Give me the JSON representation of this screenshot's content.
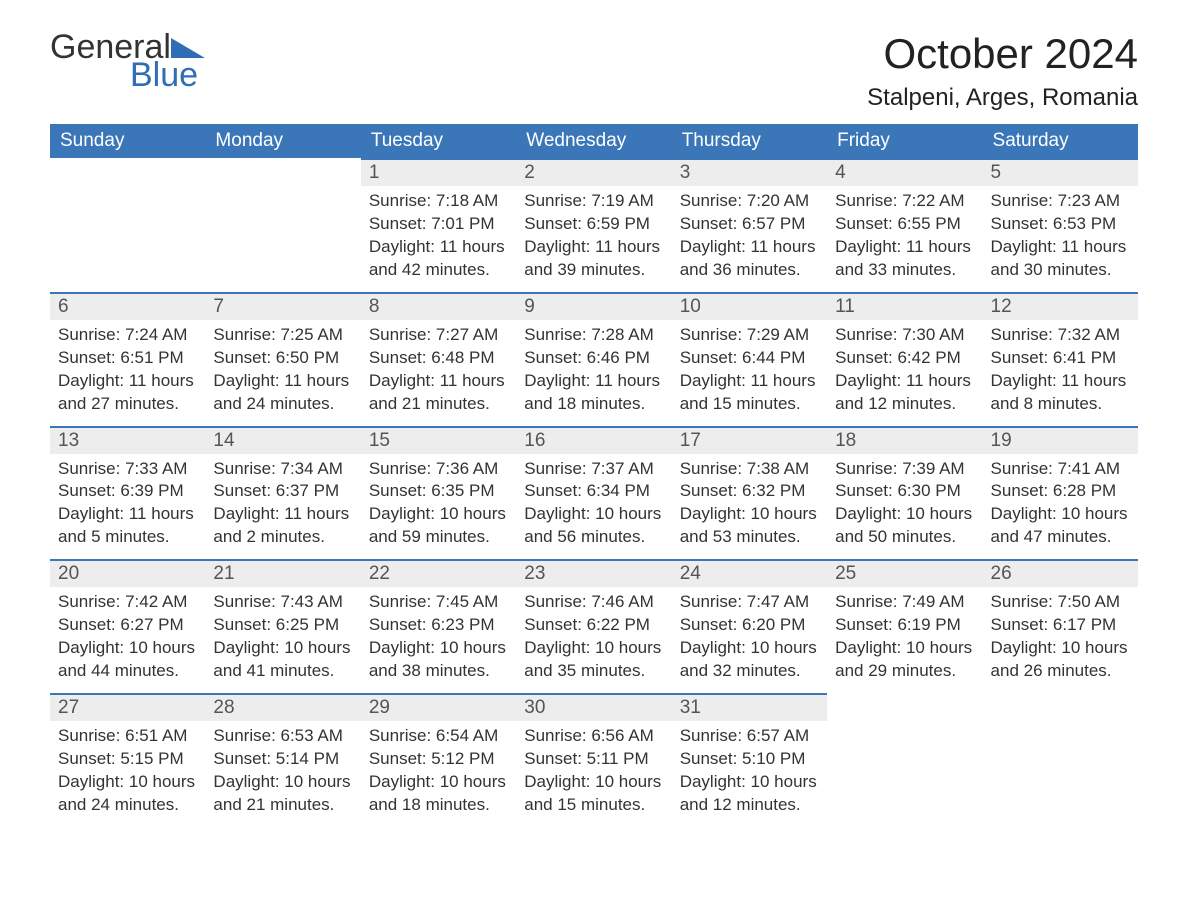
{
  "logo": {
    "line1": "General",
    "line2": "Blue",
    "accent_color": "#2f6eb5"
  },
  "header": {
    "title": "October 2024",
    "location": "Stalpeni, Arges, Romania"
  },
  "weekdays": [
    "Sunday",
    "Monday",
    "Tuesday",
    "Wednesday",
    "Thursday",
    "Friday",
    "Saturday"
  ],
  "colors": {
    "header_bg": "#3a76b8",
    "header_text": "#ffffff",
    "daynum_bg": "#ededed",
    "daynum_border": "#3a76b8",
    "text": "#333333"
  },
  "weeks": [
    [
      null,
      null,
      {
        "n": "1",
        "sunrise": "7:18 AM",
        "sunset": "7:01 PM",
        "daylight": "11 hours and 42 minutes."
      },
      {
        "n": "2",
        "sunrise": "7:19 AM",
        "sunset": "6:59 PM",
        "daylight": "11 hours and 39 minutes."
      },
      {
        "n": "3",
        "sunrise": "7:20 AM",
        "sunset": "6:57 PM",
        "daylight": "11 hours and 36 minutes."
      },
      {
        "n": "4",
        "sunrise": "7:22 AM",
        "sunset": "6:55 PM",
        "daylight": "11 hours and 33 minutes."
      },
      {
        "n": "5",
        "sunrise": "7:23 AM",
        "sunset": "6:53 PM",
        "daylight": "11 hours and 30 minutes."
      }
    ],
    [
      {
        "n": "6",
        "sunrise": "7:24 AM",
        "sunset": "6:51 PM",
        "daylight": "11 hours and 27 minutes."
      },
      {
        "n": "7",
        "sunrise": "7:25 AM",
        "sunset": "6:50 PM",
        "daylight": "11 hours and 24 minutes."
      },
      {
        "n": "8",
        "sunrise": "7:27 AM",
        "sunset": "6:48 PM",
        "daylight": "11 hours and 21 minutes."
      },
      {
        "n": "9",
        "sunrise": "7:28 AM",
        "sunset": "6:46 PM",
        "daylight": "11 hours and 18 minutes."
      },
      {
        "n": "10",
        "sunrise": "7:29 AM",
        "sunset": "6:44 PM",
        "daylight": "11 hours and 15 minutes."
      },
      {
        "n": "11",
        "sunrise": "7:30 AM",
        "sunset": "6:42 PM",
        "daylight": "11 hours and 12 minutes."
      },
      {
        "n": "12",
        "sunrise": "7:32 AM",
        "sunset": "6:41 PM",
        "daylight": "11 hours and 8 minutes."
      }
    ],
    [
      {
        "n": "13",
        "sunrise": "7:33 AM",
        "sunset": "6:39 PM",
        "daylight": "11 hours and 5 minutes."
      },
      {
        "n": "14",
        "sunrise": "7:34 AM",
        "sunset": "6:37 PM",
        "daylight": "11 hours and 2 minutes."
      },
      {
        "n": "15",
        "sunrise": "7:36 AM",
        "sunset": "6:35 PM",
        "daylight": "10 hours and 59 minutes."
      },
      {
        "n": "16",
        "sunrise": "7:37 AM",
        "sunset": "6:34 PM",
        "daylight": "10 hours and 56 minutes."
      },
      {
        "n": "17",
        "sunrise": "7:38 AM",
        "sunset": "6:32 PM",
        "daylight": "10 hours and 53 minutes."
      },
      {
        "n": "18",
        "sunrise": "7:39 AM",
        "sunset": "6:30 PM",
        "daylight": "10 hours and 50 minutes."
      },
      {
        "n": "19",
        "sunrise": "7:41 AM",
        "sunset": "6:28 PM",
        "daylight": "10 hours and 47 minutes."
      }
    ],
    [
      {
        "n": "20",
        "sunrise": "7:42 AM",
        "sunset": "6:27 PM",
        "daylight": "10 hours and 44 minutes."
      },
      {
        "n": "21",
        "sunrise": "7:43 AM",
        "sunset": "6:25 PM",
        "daylight": "10 hours and 41 minutes."
      },
      {
        "n": "22",
        "sunrise": "7:45 AM",
        "sunset": "6:23 PM",
        "daylight": "10 hours and 38 minutes."
      },
      {
        "n": "23",
        "sunrise": "7:46 AM",
        "sunset": "6:22 PM",
        "daylight": "10 hours and 35 minutes."
      },
      {
        "n": "24",
        "sunrise": "7:47 AM",
        "sunset": "6:20 PM",
        "daylight": "10 hours and 32 minutes."
      },
      {
        "n": "25",
        "sunrise": "7:49 AM",
        "sunset": "6:19 PM",
        "daylight": "10 hours and 29 minutes."
      },
      {
        "n": "26",
        "sunrise": "7:50 AM",
        "sunset": "6:17 PM",
        "daylight": "10 hours and 26 minutes."
      }
    ],
    [
      {
        "n": "27",
        "sunrise": "6:51 AM",
        "sunset": "5:15 PM",
        "daylight": "10 hours and 24 minutes."
      },
      {
        "n": "28",
        "sunrise": "6:53 AM",
        "sunset": "5:14 PM",
        "daylight": "10 hours and 21 minutes."
      },
      {
        "n": "29",
        "sunrise": "6:54 AM",
        "sunset": "5:12 PM",
        "daylight": "10 hours and 18 minutes."
      },
      {
        "n": "30",
        "sunrise": "6:56 AM",
        "sunset": "5:11 PM",
        "daylight": "10 hours and 15 minutes."
      },
      {
        "n": "31",
        "sunrise": "6:57 AM",
        "sunset": "5:10 PM",
        "daylight": "10 hours and 12 minutes."
      },
      null,
      null
    ]
  ],
  "field_labels": {
    "sunrise": "Sunrise:",
    "sunset": "Sunset:",
    "daylight": "Daylight:"
  }
}
